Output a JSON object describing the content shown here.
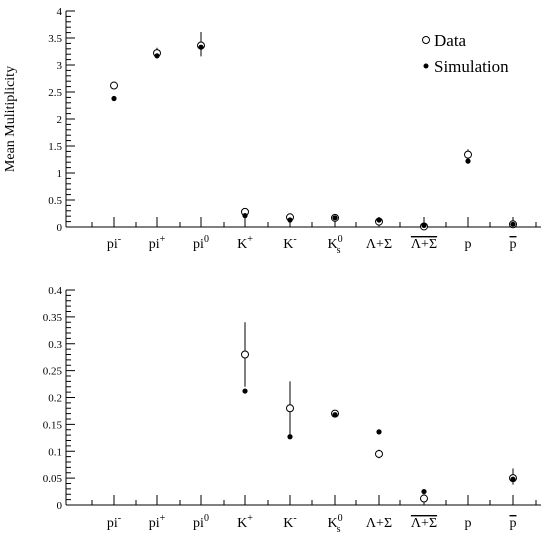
{
  "legend": {
    "data_label": "Data",
    "sim_label": "Simulation"
  },
  "chart_data": [
    {
      "type": "scatter",
      "ylabel": "Mean Mulitiplicity",
      "xlabel": "",
      "ylim": [
        0,
        4
      ],
      "y_ticks": [
        "0",
        "0.5",
        "1",
        "1.5",
        "2",
        "2.5",
        "3",
        "3.5",
        "4"
      ],
      "legend_position": "top-right",
      "categories": [
        {
          "base": "pi",
          "sup": "-",
          "sub": "",
          "bar": false
        },
        {
          "base": "pi",
          "sup": "+",
          "sub": "",
          "bar": false
        },
        {
          "base": "pi",
          "sup": "0",
          "sub": "",
          "bar": false
        },
        {
          "base": "K",
          "sup": "+",
          "sub": "",
          "bar": false
        },
        {
          "base": "K",
          "sup": "-",
          "sub": "",
          "bar": false
        },
        {
          "base": "K",
          "sup": "0",
          "sub": "s",
          "bar": false
        },
        {
          "base": "Λ+Σ",
          "sup": "",
          "sub": "",
          "bar": false
        },
        {
          "base": "Λ+Σ",
          "sup": "",
          "sub": "",
          "bar": true
        },
        {
          "base": "p",
          "sup": "",
          "sub": "",
          "bar": false
        },
        {
          "base": "p",
          "sup": "",
          "sub": "",
          "bar": true
        }
      ],
      "series": [
        {
          "name": "Data",
          "marker": "open-circle",
          "values": [
            2.62,
            3.22,
            3.36,
            0.28,
            0.18,
            0.17,
            0.1,
            0.01,
            1.34,
            0.05
          ],
          "err_low": [
            0,
            0.1,
            0.2,
            0.06,
            0.05,
            0.01,
            0.02,
            0.01,
            0.1,
            0.02
          ],
          "err_high": [
            0,
            0.1,
            0.25,
            0.06,
            0.05,
            0.01,
            0.02,
            0.01,
            0.1,
            0.02
          ]
        },
        {
          "name": "Simulation",
          "marker": "filled-dot",
          "values": [
            2.38,
            3.17,
            3.33,
            0.21,
            0.13,
            0.17,
            0.13,
            0.03,
            1.22,
            0.05
          ]
        }
      ]
    },
    {
      "type": "scatter",
      "ylabel": "",
      "xlabel": "",
      "ylim": [
        0,
        0.4
      ],
      "y_ticks": [
        "0",
        "0.05",
        "0.1",
        "0.15",
        "0.2",
        "0.25",
        "0.3",
        "0.35",
        "0.4"
      ],
      "categories": [
        {
          "base": "pi",
          "sup": "-",
          "sub": "",
          "bar": false
        },
        {
          "base": "pi",
          "sup": "+",
          "sub": "",
          "bar": false
        },
        {
          "base": "pi",
          "sup": "0",
          "sub": "",
          "bar": false
        },
        {
          "base": "K",
          "sup": "+",
          "sub": "",
          "bar": false
        },
        {
          "base": "K",
          "sup": "-",
          "sub": "",
          "bar": false
        },
        {
          "base": "K",
          "sup": "0",
          "sub": "s",
          "bar": false
        },
        {
          "base": "Λ+Σ",
          "sup": "",
          "sub": "",
          "bar": false
        },
        {
          "base": "Λ+Σ",
          "sup": "",
          "sub": "",
          "bar": true
        },
        {
          "base": "p",
          "sup": "",
          "sub": "",
          "bar": false
        },
        {
          "base": "p",
          "sup": "",
          "sub": "",
          "bar": true
        }
      ],
      "series": [
        {
          "name": "Data",
          "marker": "open-circle",
          "values": [
            null,
            null,
            null,
            0.28,
            0.18,
            0.17,
            0.095,
            0.012,
            null,
            0.05
          ],
          "err_low": [
            0,
            0,
            0,
            0.06,
            0.05,
            0.005,
            0.008,
            0.008,
            0,
            0.012
          ],
          "err_high": [
            0,
            0,
            0,
            0.06,
            0.05,
            0.005,
            0.008,
            0.008,
            0,
            0.018
          ]
        },
        {
          "name": "Simulation",
          "marker": "filled-dot",
          "values": [
            null,
            null,
            null,
            0.212,
            0.127,
            0.168,
            0.136,
            0.025,
            null,
            0.048
          ]
        }
      ]
    }
  ]
}
